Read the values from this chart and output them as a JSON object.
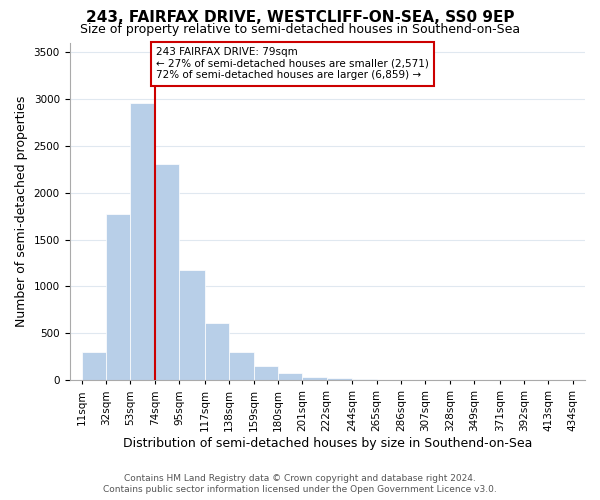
{
  "title": "243, FAIRFAX DRIVE, WESTCLIFF-ON-SEA, SS0 9EP",
  "subtitle": "Size of property relative to semi-detached houses in Southend-on-Sea",
  "xlabel": "Distribution of semi-detached houses by size in Southend-on-Sea",
  "ylabel": "Number of semi-detached properties",
  "footnote1": "Contains HM Land Registry data © Crown copyright and database right 2024.",
  "footnote2": "Contains public sector information licensed under the Open Government Licence v3.0.",
  "annotation_line1": "243 FAIRFAX DRIVE: 79sqm",
  "annotation_line2": "← 27% of semi-detached houses are smaller (2,571)",
  "annotation_line3": "72% of semi-detached houses are larger (6,859) →",
  "property_value": 79,
  "bar_color": "#b8cfe8",
  "bar_edge_color": "#b8cfe8",
  "marker_color": "#cc0000",
  "annotation_box_edge": "#cc0000",
  "bin_edges": [
    11,
    32,
    53,
    74,
    95,
    117,
    138,
    159,
    180,
    201,
    222,
    244,
    265,
    286,
    307,
    328,
    349,
    371,
    392,
    413,
    434
  ],
  "bin_labels": [
    "11sqm",
    "32sqm",
    "53sqm",
    "74sqm",
    "95sqm",
    "117sqm",
    "138sqm",
    "159sqm",
    "180sqm",
    "201sqm",
    "222sqm",
    "244sqm",
    "265sqm",
    "286sqm",
    "307sqm",
    "328sqm",
    "349sqm",
    "371sqm",
    "392sqm",
    "413sqm",
    "434sqm"
  ],
  "values": [
    300,
    1775,
    2950,
    2300,
    1175,
    615,
    300,
    150,
    75,
    40,
    20,
    10,
    5,
    2,
    1,
    1,
    1,
    0,
    0,
    0
  ],
  "ylim": [
    0,
    3600
  ],
  "yticks": [
    0,
    500,
    1000,
    1500,
    2000,
    2500,
    3000,
    3500
  ],
  "bg_color": "#ffffff",
  "plot_bg_color": "#ffffff",
  "grid_color": "#e0e8f0",
  "title_fontsize": 11,
  "subtitle_fontsize": 9,
  "label_fontsize": 9,
  "tick_fontsize": 7.5,
  "footnote_fontsize": 6.5
}
